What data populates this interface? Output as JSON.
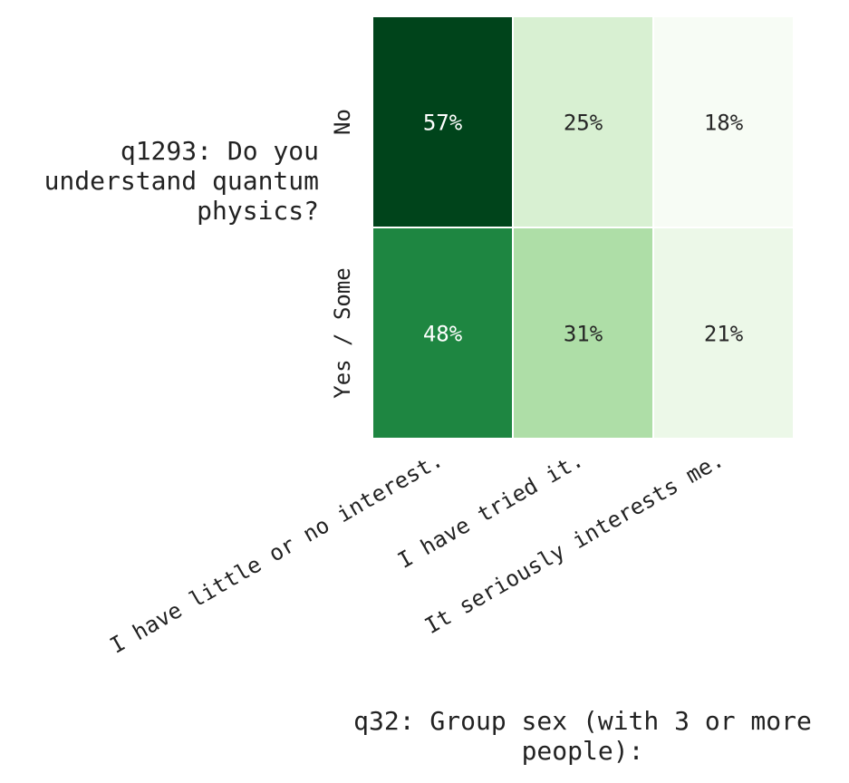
{
  "chart_data": {
    "type": "heatmap",
    "rows": [
      "No",
      "Yes / Some"
    ],
    "columns": [
      "I have little or no interest.",
      "I have tried it.",
      "It seriously interests me."
    ],
    "values": [
      [
        57,
        25,
        18
      ],
      [
        48,
        31,
        21
      ]
    ],
    "value_format": "percent",
    "ylabel": "q1293: Do you understand quantum physics?",
    "xlabel": "q32: Group sex (with 3 or more people):",
    "colormap": "Greens",
    "colors": {
      "low": "#f7fcf5",
      "high": "#00441b"
    },
    "range": [
      18,
      57
    ]
  }
}
